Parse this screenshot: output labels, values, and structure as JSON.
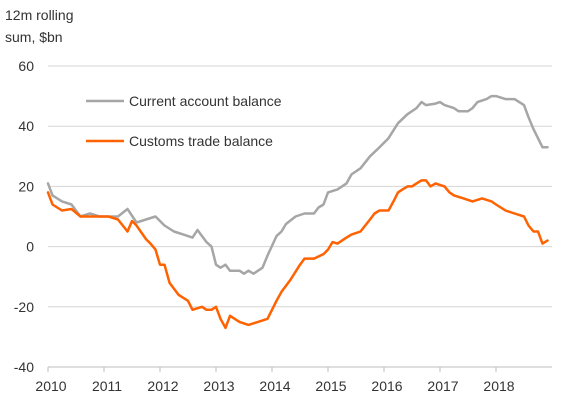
{
  "chart_data": {
    "type": "line",
    "ylabel": [
      "12m rolling",
      "sum, $bn"
    ],
    "xlim": [
      2010,
      2019.0
    ],
    "ylim": [
      -40,
      60
    ],
    "yticks": [
      60,
      40,
      20,
      0,
      -20,
      -40
    ],
    "xticks": [
      2010,
      2011,
      2012,
      2013,
      2014,
      2015,
      2016,
      2017,
      2018
    ],
    "grid": "horizontal",
    "legend_position": "top-left",
    "series": [
      {
        "name": "Current account balance",
        "color": "#a6a6a6",
        "points": [
          [
            2010.0,
            21
          ],
          [
            2010.08,
            17
          ],
          [
            2010.25,
            15
          ],
          [
            2010.42,
            14
          ],
          [
            2010.58,
            10
          ],
          [
            2010.75,
            11
          ],
          [
            2010.92,
            10
          ],
          [
            2011.08,
            10
          ],
          [
            2011.25,
            10
          ],
          [
            2011.42,
            12.5
          ],
          [
            2011.58,
            8
          ],
          [
            2011.75,
            9
          ],
          [
            2011.92,
            10
          ],
          [
            2012.08,
            7
          ],
          [
            2012.25,
            5
          ],
          [
            2012.42,
            4
          ],
          [
            2012.58,
            3
          ],
          [
            2012.67,
            5.5
          ],
          [
            2012.83,
            1.5
          ],
          [
            2012.92,
            0
          ],
          [
            2013.0,
            -6
          ],
          [
            2013.08,
            -7
          ],
          [
            2013.17,
            -6
          ],
          [
            2013.25,
            -8
          ],
          [
            2013.42,
            -8
          ],
          [
            2013.5,
            -9
          ],
          [
            2013.58,
            -8
          ],
          [
            2013.67,
            -9
          ],
          [
            2013.83,
            -7
          ],
          [
            2013.92,
            -3
          ],
          [
            2014.08,
            3.5
          ],
          [
            2014.17,
            5
          ],
          [
            2014.25,
            7.5
          ],
          [
            2014.42,
            10
          ],
          [
            2014.58,
            11
          ],
          [
            2014.75,
            11
          ],
          [
            2014.83,
            13
          ],
          [
            2014.92,
            14
          ],
          [
            2015.0,
            18
          ],
          [
            2015.17,
            19
          ],
          [
            2015.33,
            21
          ],
          [
            2015.42,
            24
          ],
          [
            2015.58,
            26
          ],
          [
            2015.75,
            30
          ],
          [
            2015.92,
            33
          ],
          [
            2016.08,
            36
          ],
          [
            2016.25,
            41
          ],
          [
            2016.42,
            44
          ],
          [
            2016.58,
            46
          ],
          [
            2016.67,
            48
          ],
          [
            2016.75,
            47
          ],
          [
            2016.92,
            47.5
          ],
          [
            2017.0,
            48
          ],
          [
            2017.08,
            47
          ],
          [
            2017.25,
            46
          ],
          [
            2017.33,
            45
          ],
          [
            2017.5,
            45
          ],
          [
            2017.58,
            46
          ],
          [
            2017.67,
            48
          ],
          [
            2017.83,
            49
          ],
          [
            2017.92,
            50
          ],
          [
            2018.0,
            50
          ],
          [
            2018.17,
            49
          ],
          [
            2018.33,
            49
          ],
          [
            2018.5,
            47
          ],
          [
            2018.58,
            43
          ],
          [
            2018.67,
            39
          ],
          [
            2018.75,
            36
          ],
          [
            2018.83,
            33
          ],
          [
            2018.92,
            33
          ]
        ]
      },
      {
        "name": "Customs trade balance",
        "color": "#ff6200",
        "points": [
          [
            2010.0,
            18
          ],
          [
            2010.08,
            14
          ],
          [
            2010.25,
            12
          ],
          [
            2010.42,
            12.5
          ],
          [
            2010.58,
            10
          ],
          [
            2010.75,
            10
          ],
          [
            2010.92,
            10
          ],
          [
            2011.08,
            10
          ],
          [
            2011.25,
            9
          ],
          [
            2011.42,
            5
          ],
          [
            2011.5,
            8.5
          ],
          [
            2011.58,
            7
          ],
          [
            2011.75,
            2.5
          ],
          [
            2011.83,
            1
          ],
          [
            2011.92,
            -1
          ],
          [
            2012.0,
            -6
          ],
          [
            2012.08,
            -6
          ],
          [
            2012.17,
            -12
          ],
          [
            2012.33,
            -16
          ],
          [
            2012.5,
            -18
          ],
          [
            2012.58,
            -21
          ],
          [
            2012.75,
            -20
          ],
          [
            2012.83,
            -21
          ],
          [
            2012.92,
            -21
          ],
          [
            2013.0,
            -20
          ],
          [
            2013.08,
            -24
          ],
          [
            2013.17,
            -27
          ],
          [
            2013.25,
            -23
          ],
          [
            2013.42,
            -25
          ],
          [
            2013.58,
            -26
          ],
          [
            2013.75,
            -25
          ],
          [
            2013.92,
            -24
          ],
          [
            2014.0,
            -21
          ],
          [
            2014.08,
            -18
          ],
          [
            2014.17,
            -15
          ],
          [
            2014.33,
            -11
          ],
          [
            2014.5,
            -6
          ],
          [
            2014.58,
            -4
          ],
          [
            2014.75,
            -4
          ],
          [
            2014.92,
            -2.5
          ],
          [
            2015.0,
            -1
          ],
          [
            2015.08,
            1.5
          ],
          [
            2015.17,
            1
          ],
          [
            2015.33,
            3
          ],
          [
            2015.42,
            4
          ],
          [
            2015.58,
            5
          ],
          [
            2015.75,
            9
          ],
          [
            2015.83,
            11
          ],
          [
            2015.92,
            12
          ],
          [
            2016.0,
            12
          ],
          [
            2016.08,
            12
          ],
          [
            2016.17,
            15
          ],
          [
            2016.25,
            18
          ],
          [
            2016.33,
            19
          ],
          [
            2016.42,
            20
          ],
          [
            2016.5,
            20
          ],
          [
            2016.58,
            21
          ],
          [
            2016.67,
            22
          ],
          [
            2016.75,
            22
          ],
          [
            2016.83,
            20
          ],
          [
            2016.92,
            21
          ],
          [
            2017.08,
            20
          ],
          [
            2017.17,
            18
          ],
          [
            2017.25,
            17
          ],
          [
            2017.42,
            16
          ],
          [
            2017.58,
            15
          ],
          [
            2017.75,
            16
          ],
          [
            2017.92,
            15
          ],
          [
            2018.0,
            14
          ],
          [
            2018.17,
            12
          ],
          [
            2018.33,
            11
          ],
          [
            2018.5,
            10
          ],
          [
            2018.58,
            7
          ],
          [
            2018.67,
            5
          ],
          [
            2018.75,
            5
          ],
          [
            2018.83,
            1
          ],
          [
            2018.92,
            2
          ]
        ]
      }
    ]
  }
}
